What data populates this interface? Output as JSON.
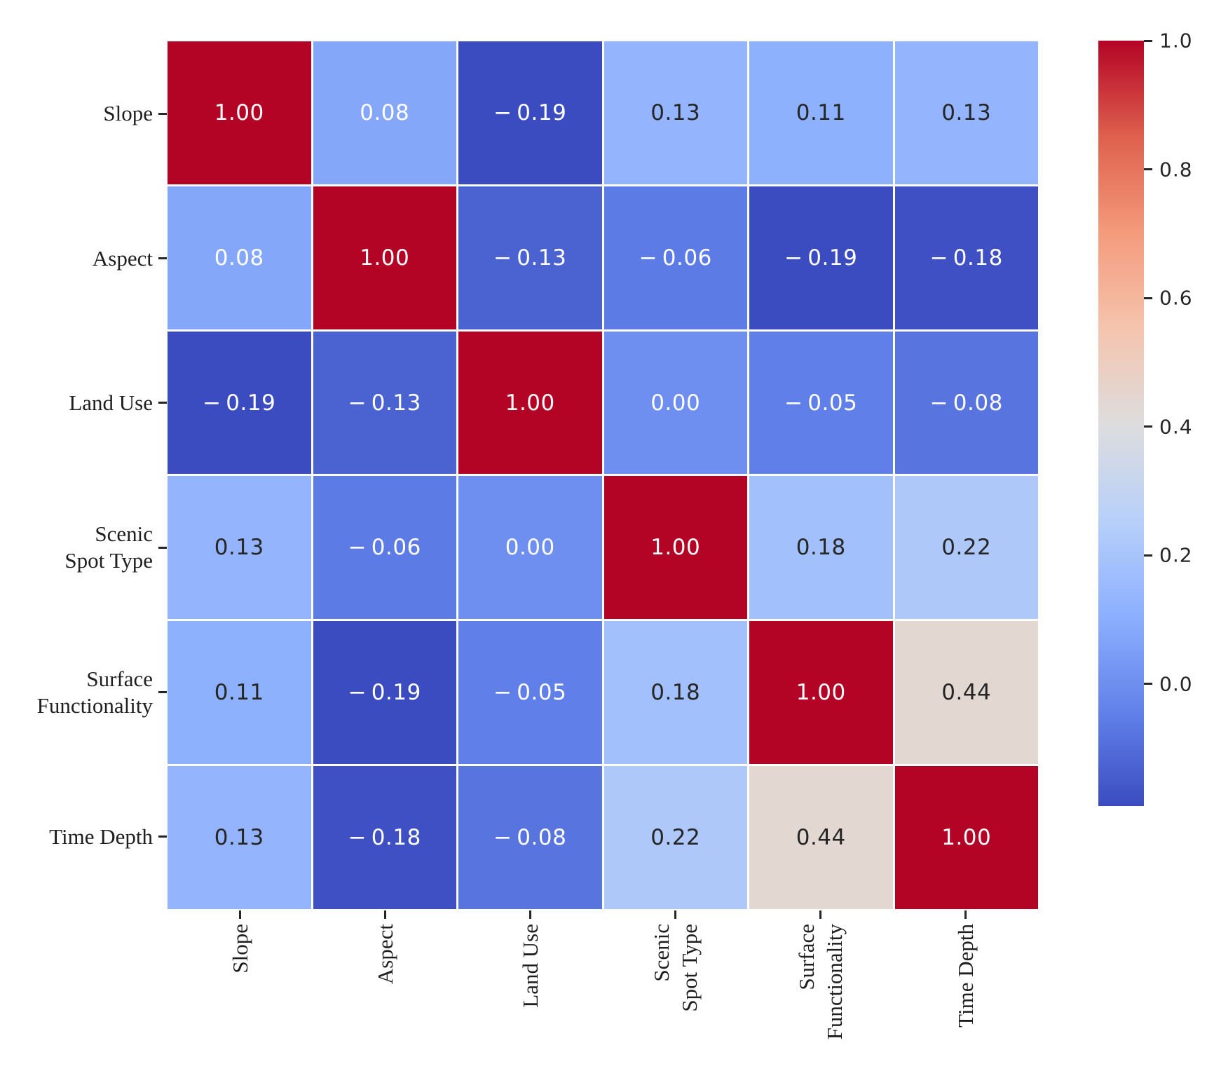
{
  "chart_data": {
    "type": "heatmap",
    "title": "",
    "categories_lines": [
      [
        "Slope"
      ],
      [
        "Aspect"
      ],
      [
        "Land Use"
      ],
      [
        "Scenic",
        "Spot Type"
      ],
      [
        "Surface",
        "Functionality"
      ],
      [
        "Time Depth"
      ]
    ],
    "matrix": [
      [
        1.0,
        0.08,
        -0.19,
        0.13,
        0.11,
        0.13
      ],
      [
        0.08,
        1.0,
        -0.13,
        -0.06,
        -0.19,
        -0.18
      ],
      [
        -0.19,
        -0.13,
        1.0,
        0.0,
        -0.05,
        -0.08
      ],
      [
        0.13,
        -0.06,
        0.0,
        1.0,
        0.18,
        0.22
      ],
      [
        0.11,
        -0.19,
        -0.05,
        0.18,
        1.0,
        0.44
      ],
      [
        0.13,
        -0.18,
        -0.08,
        0.22,
        0.44,
        1.0
      ]
    ],
    "vmin": -0.19,
    "vmax": 1.0,
    "colormap": "coolwarm",
    "colormap_stops": [
      {
        "t": 0.0,
        "color": "#3B4CC0"
      },
      {
        "t": 0.125,
        "color": "#6282EA"
      },
      {
        "t": 0.25,
        "color": "#8DB0FE"
      },
      {
        "t": 0.375,
        "color": "#B8D0F9"
      },
      {
        "t": 0.5,
        "color": "#DDDDDD"
      },
      {
        "t": 0.625,
        "color": "#F5C4AD"
      },
      {
        "t": 0.75,
        "color": "#F49A7B"
      },
      {
        "t": 0.875,
        "color": "#DE604D"
      },
      {
        "t": 1.0,
        "color": "#B40426"
      }
    ],
    "colorbar_ticks": {
      "values": [
        1.0,
        0.8,
        0.6,
        0.4,
        0.2,
        0.0
      ],
      "labels": [
        "1.0",
        "0.8",
        "0.6",
        "0.4",
        "0.2",
        "0.0"
      ]
    },
    "annotation_decimals": 2,
    "legend_position": "right",
    "grid": false,
    "colors": {
      "background": "#ffffff",
      "cell_gap_line": "#ffffff",
      "tick_mark": "#262626",
      "annotation_dark": "#262626",
      "annotation_light": "#ffffff",
      "max_red": "#B40426",
      "min_blue": "#3B4CC0"
    }
  }
}
